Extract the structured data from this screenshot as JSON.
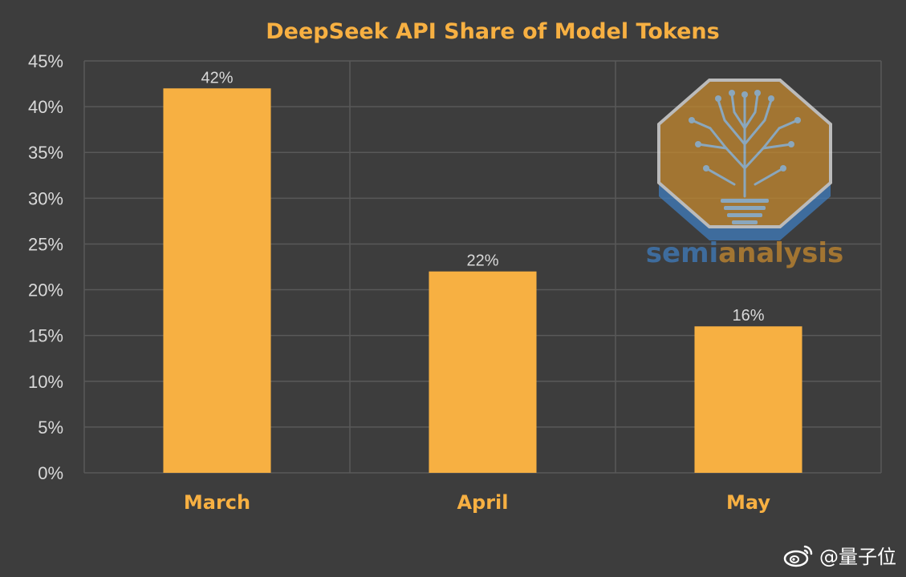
{
  "chart_data": {
    "type": "bar",
    "title": "DeepSeek API Share of Model Tokens",
    "categories": [
      "March",
      "April",
      "May"
    ],
    "values": [
      42,
      22,
      16
    ],
    "value_labels": [
      "42%",
      "22%",
      "16%"
    ],
    "ylim": [
      0,
      45
    ],
    "y_ticks": [
      "0%",
      "5%",
      "10%",
      "15%",
      "20%",
      "25%",
      "30%",
      "35%",
      "40%",
      "45%"
    ],
    "grid": true,
    "colors": {
      "bar": "#f7b042",
      "title": "#f7b042",
      "category_label": "#f7b042",
      "tick_label": "#d9d9d9",
      "value_label": "#d9d9d9",
      "grid": "#595959",
      "background": "#3d3d3d"
    }
  },
  "logo": {
    "text_part1": "semi",
    "text_part2": "analysis",
    "icon": "circuit-tree-lightbulb-icon"
  },
  "watermark": {
    "icon": "weibo-icon",
    "text": "@量子位"
  }
}
